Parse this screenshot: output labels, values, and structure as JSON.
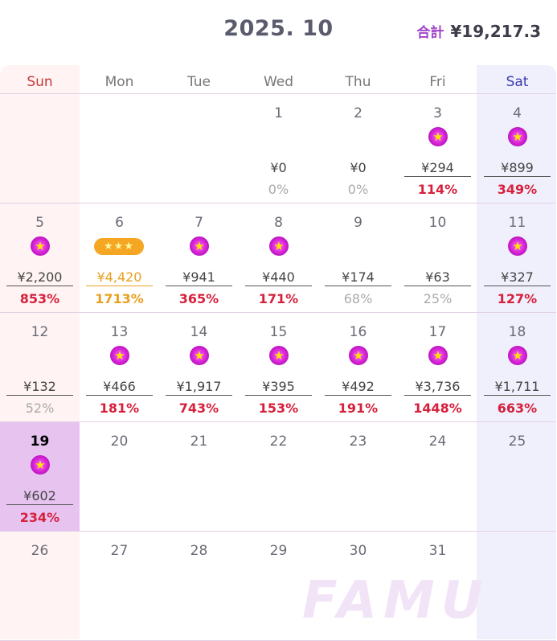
{
  "header": {
    "month": "2025. 10",
    "total_label": "合計",
    "total_value": "¥19,217.3"
  },
  "weekdays": [
    "Sun",
    "Mon",
    "Tue",
    "Wed",
    "Thu",
    "Fri",
    "Sat"
  ],
  "colors": {
    "positive_pct": "#d6203c",
    "low_pct": "#aaaaaa",
    "gold": "#e8a020",
    "badge": "#d11ed1",
    "today_bg": "#e7c3f0"
  },
  "weeks": [
    [
      null,
      null,
      null,
      {
        "day": "1",
        "amount": "¥0",
        "pct": "0%",
        "pct_style": "grey",
        "badge": "none",
        "underline": false
      },
      {
        "day": "2",
        "amount": "¥0",
        "pct": "0%",
        "pct_style": "grey",
        "badge": "none",
        "underline": false
      },
      {
        "day": "3",
        "amount": "¥294",
        "pct": "114%",
        "pct_style": "red",
        "badge": "star",
        "underline": true
      },
      {
        "day": "4",
        "amount": "¥899",
        "pct": "349%",
        "pct_style": "red",
        "badge": "star",
        "underline": true
      }
    ],
    [
      {
        "day": "5",
        "amount": "¥2,200",
        "pct": "853%",
        "pct_style": "red",
        "badge": "star",
        "underline": true
      },
      {
        "day": "6",
        "amount": "¥4,420",
        "pct": "1713%",
        "pct_style": "gold",
        "badge": "triple",
        "badge_text": "★★★",
        "underline": true
      },
      {
        "day": "7",
        "amount": "¥941",
        "pct": "365%",
        "pct_style": "red",
        "badge": "star",
        "underline": true
      },
      {
        "day": "8",
        "amount": "¥440",
        "pct": "171%",
        "pct_style": "red",
        "badge": "star",
        "underline": true
      },
      {
        "day": "9",
        "amount": "¥174",
        "pct": "68%",
        "pct_style": "grey",
        "badge": "none",
        "underline": true
      },
      {
        "day": "10",
        "amount": "¥63",
        "pct": "25%",
        "pct_style": "grey",
        "badge": "none",
        "underline": true
      },
      {
        "day": "11",
        "amount": "¥327",
        "pct": "127%",
        "pct_style": "red",
        "badge": "star",
        "underline": true
      }
    ],
    [
      {
        "day": "12",
        "amount": "¥132",
        "pct": "52%",
        "pct_style": "grey",
        "badge": "none",
        "underline": true
      },
      {
        "day": "13",
        "amount": "¥466",
        "pct": "181%",
        "pct_style": "red",
        "badge": "star",
        "underline": true
      },
      {
        "day": "14",
        "amount": "¥1,917",
        "pct": "743%",
        "pct_style": "red",
        "badge": "star",
        "underline": true
      },
      {
        "day": "15",
        "amount": "¥395",
        "pct": "153%",
        "pct_style": "red",
        "badge": "star",
        "underline": true
      },
      {
        "day": "16",
        "amount": "¥492",
        "pct": "191%",
        "pct_style": "red",
        "badge": "star",
        "underline": true
      },
      {
        "day": "17",
        "amount": "¥3,736",
        "pct": "1448%",
        "pct_style": "red",
        "badge": "star",
        "underline": true
      },
      {
        "day": "18",
        "amount": "¥1,711",
        "pct": "663%",
        "pct_style": "red",
        "badge": "star",
        "underline": true
      }
    ],
    [
      {
        "day": "19",
        "amount": "¥602",
        "pct": "234%",
        "pct_style": "red",
        "badge": "star",
        "underline": true,
        "today": true
      },
      {
        "day": "20"
      },
      {
        "day": "21"
      },
      {
        "day": "22"
      },
      {
        "day": "23"
      },
      {
        "day": "24"
      },
      {
        "day": "25"
      }
    ],
    [
      {
        "day": "26"
      },
      {
        "day": "27"
      },
      {
        "day": "28"
      },
      {
        "day": "29"
      },
      {
        "day": "30"
      },
      {
        "day": "31"
      },
      null
    ]
  ],
  "badge_star": "★",
  "watermark": "FAMU"
}
